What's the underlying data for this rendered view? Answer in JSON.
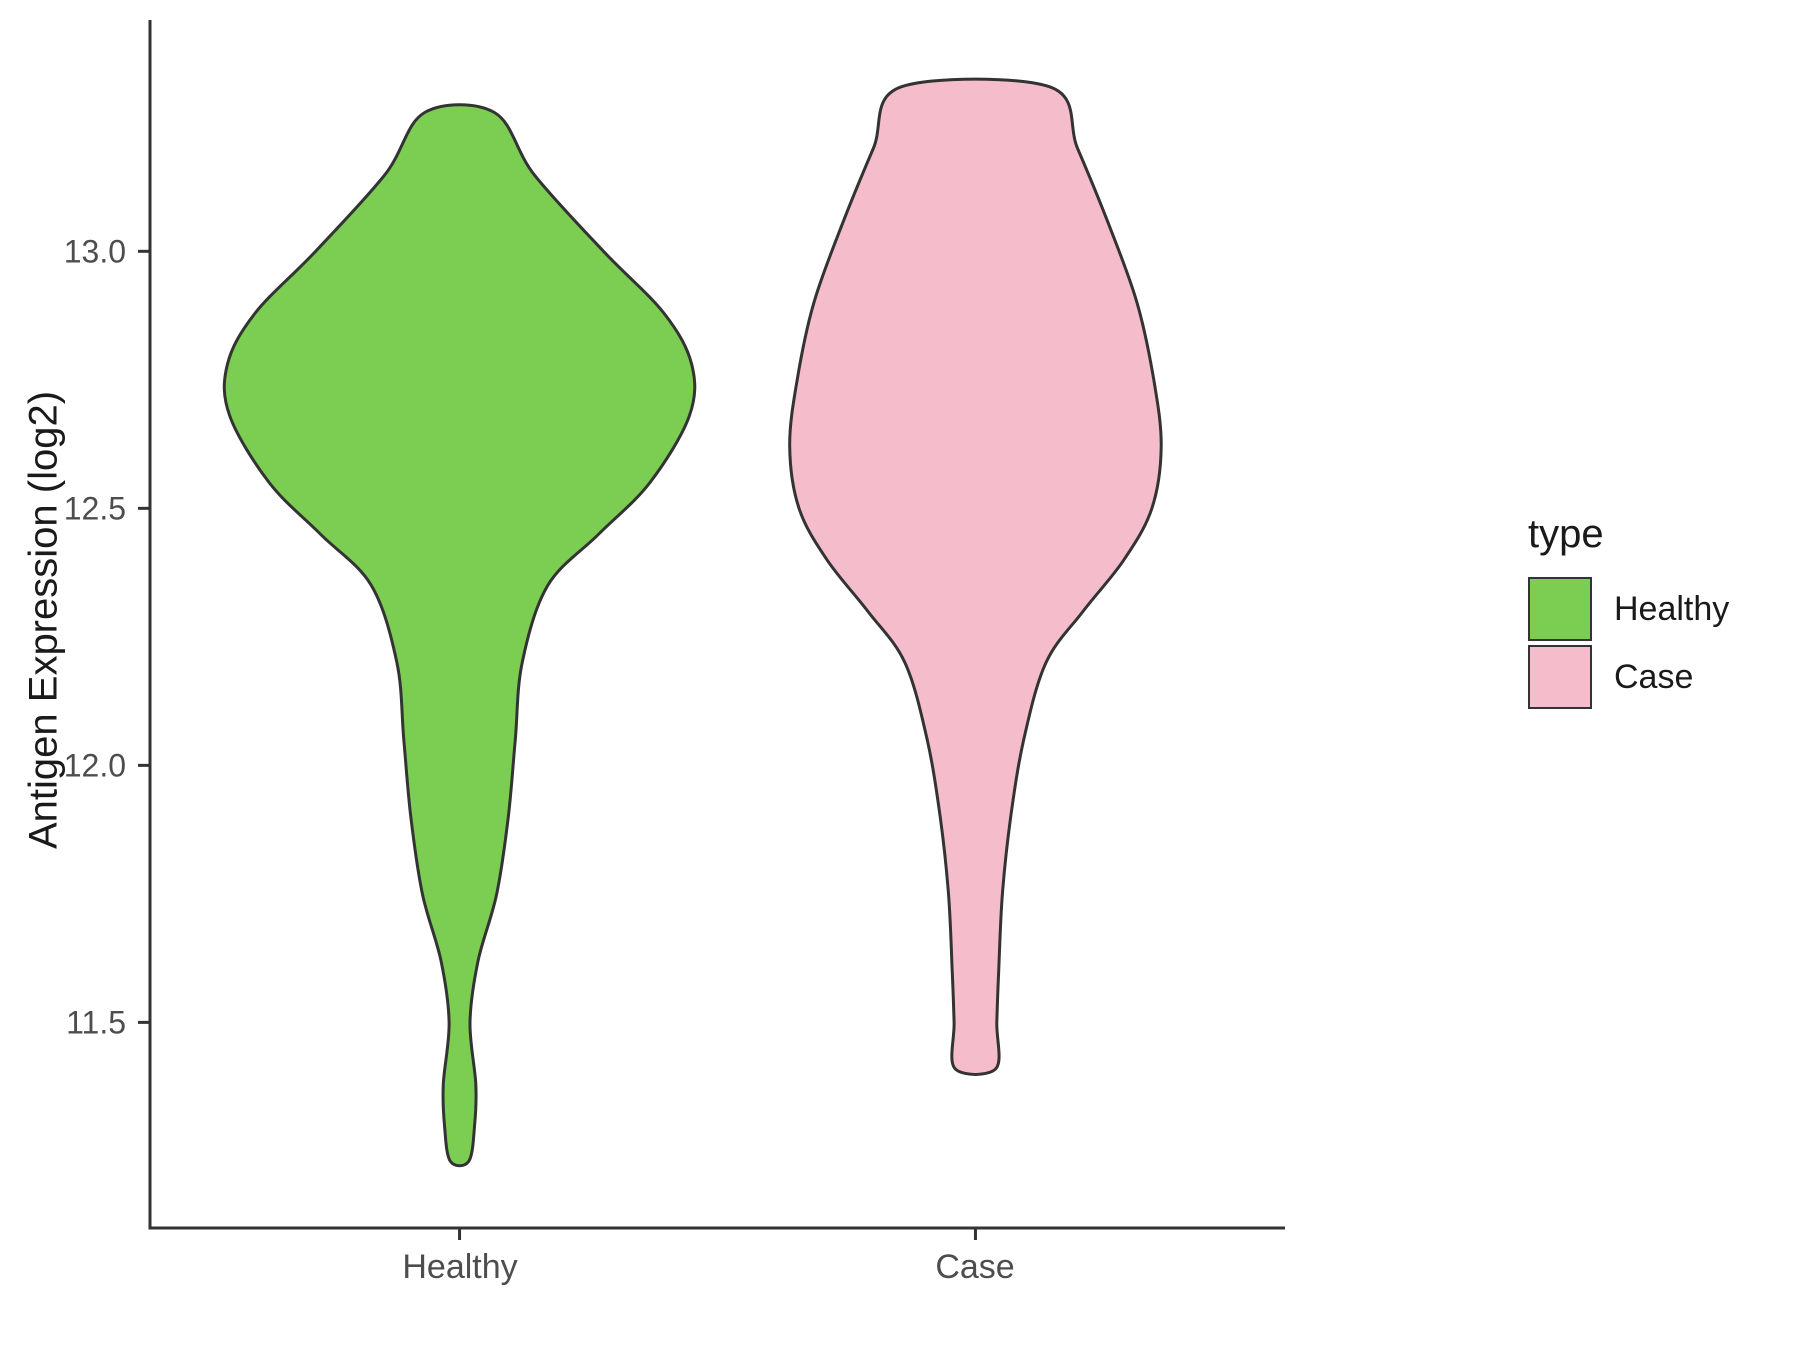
{
  "figure": {
    "ylabel": "Antigen Expression (log2)"
  },
  "legend": {
    "title": "type",
    "entries": [
      {
        "label": "Healthy",
        "color": "#7BCE52"
      },
      {
        "label": "Case",
        "color": "#F5BDCC"
      }
    ]
  },
  "chart_data": {
    "type": "violin",
    "title": "",
    "xlabel": "",
    "ylabel": "Antigen Expression (log2)",
    "categories": [
      "Healthy",
      "Case"
    ],
    "yticks": [
      11.5,
      12.0,
      12.5,
      13.0
    ],
    "ylim": [
      11.1,
      13.45
    ],
    "grid": false,
    "legend_position": "right",
    "legend_title": "type",
    "outline_color": "#333333",
    "axis_color": "#333333",
    "tick_label_color": "#4D4D4D",
    "series": [
      {
        "name": "Healthy",
        "color": "#7BCE52",
        "max_width": 0.9,
        "profile": [
          [
            13.27,
            0.15
          ],
          [
            13.15,
            0.32
          ],
          [
            13.0,
            0.62
          ],
          [
            12.88,
            0.88
          ],
          [
            12.78,
            1.0
          ],
          [
            12.68,
            0.99
          ],
          [
            12.55,
            0.82
          ],
          [
            12.45,
            0.6
          ],
          [
            12.35,
            0.38
          ],
          [
            12.2,
            0.27
          ],
          [
            12.05,
            0.24
          ],
          [
            11.9,
            0.21
          ],
          [
            11.75,
            0.16
          ],
          [
            11.62,
            0.08
          ],
          [
            11.5,
            0.045
          ],
          [
            11.38,
            0.07
          ],
          [
            11.3,
            0.065
          ],
          [
            11.23,
            0.04
          ]
        ]
      },
      {
        "name": "Case",
        "color": "#F5BDCC",
        "max_width": 0.72,
        "profile": [
          [
            13.32,
            0.4
          ],
          [
            13.2,
            0.55
          ],
          [
            13.05,
            0.72
          ],
          [
            12.9,
            0.87
          ],
          [
            12.75,
            0.96
          ],
          [
            12.62,
            1.0
          ],
          [
            12.5,
            0.95
          ],
          [
            12.4,
            0.8
          ],
          [
            12.3,
            0.58
          ],
          [
            12.2,
            0.38
          ],
          [
            12.05,
            0.26
          ],
          [
            11.9,
            0.19
          ],
          [
            11.75,
            0.145
          ],
          [
            11.6,
            0.125
          ],
          [
            11.5,
            0.115
          ],
          [
            11.41,
            0.11
          ]
        ]
      }
    ]
  }
}
